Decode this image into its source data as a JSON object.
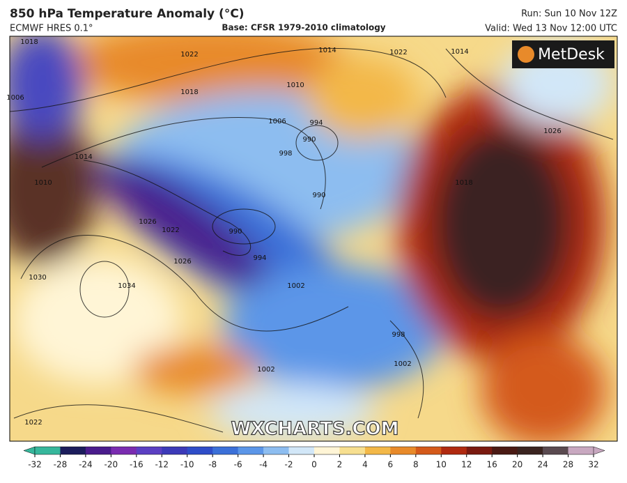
{
  "header": {
    "title": "850 hPa Temperature Anomaly (°C)",
    "model": "ECMWF HRES 0.1°",
    "base": "Base: CFSR 1979-2010 climatology",
    "run": "Run: Sun 10 Nov 12Z",
    "valid": "Valid: Wed 13 Nov 12:00 UTC"
  },
  "logo": "MetDesk",
  "watermark": "WXCHARTS.COM",
  "isobar_labels": [
    1018,
    1006,
    1014,
    1022,
    1018,
    1014,
    1022,
    1010,
    1006,
    994,
    990,
    998,
    990,
    990,
    994,
    1014,
    1002,
    1010,
    1026,
    1018,
    1030,
    1034,
    1026,
    1022,
    1002,
    998,
    1002,
    1026,
    1022
  ],
  "colorbar": {
    "ticks": [
      -32,
      -28,
      -24,
      -20,
      -16,
      -12,
      -10,
      -8,
      -6,
      -4,
      -2,
      0,
      2,
      4,
      6,
      8,
      10,
      12,
      16,
      20,
      24,
      28,
      32
    ],
    "colors": [
      "#36b79c",
      "#1c1d5c",
      "#4a1c8c",
      "#7a2cb0",
      "#5b3fc2",
      "#3c3ab8",
      "#2f4dc8",
      "#3b70d8",
      "#5b96e8",
      "#8dbdf0",
      "#d2e7f8",
      "#fff5d6",
      "#f7df90",
      "#f3b848",
      "#e88a2a",
      "#d45a1a",
      "#b02a10",
      "#7a1a10",
      "#4a1a14",
      "#3a2420",
      "#5a4a50",
      "#c8a8c0"
    ]
  }
}
